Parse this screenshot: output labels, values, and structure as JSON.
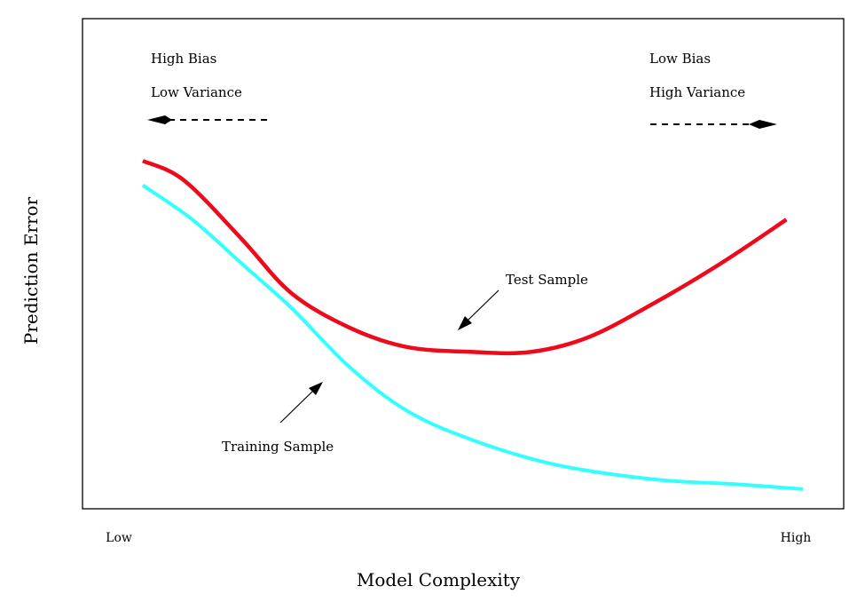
{
  "chart_data": {
    "type": "line",
    "xlabel": "Model Complexity",
    "ylabel": "Prediction Error",
    "x_tick_labels": [
      "Low",
      "High"
    ],
    "xlim": [
      0,
      1
    ],
    "ylim": [
      0,
      1
    ],
    "grid": false,
    "legend": "none",
    "series": [
      {
        "name": "Test Sample",
        "color": "#ee0a1b",
        "points": [
          [
            0.0,
            0.71
          ],
          [
            0.05,
            0.67
          ],
          [
            0.12,
            0.55
          ],
          [
            0.18,
            0.44
          ],
          [
            0.25,
            0.37
          ],
          [
            0.32,
            0.33
          ],
          [
            0.4,
            0.32
          ],
          [
            0.47,
            0.32
          ],
          [
            0.54,
            0.35
          ],
          [
            0.62,
            0.42
          ],
          [
            0.7,
            0.5
          ],
          [
            0.78,
            0.59
          ]
        ]
      },
      {
        "name": "Training Sample",
        "color": "#33ffff",
        "points": [
          [
            0.0,
            0.66
          ],
          [
            0.06,
            0.59
          ],
          [
            0.12,
            0.5
          ],
          [
            0.18,
            0.41
          ],
          [
            0.25,
            0.29
          ],
          [
            0.32,
            0.2
          ],
          [
            0.4,
            0.14
          ],
          [
            0.5,
            0.09
          ],
          [
            0.62,
            0.06
          ],
          [
            0.72,
            0.05
          ],
          [
            0.8,
            0.04
          ]
        ]
      }
    ],
    "annotations": {
      "top_left_line1": "High Bias",
      "top_left_line2": "Low Variance",
      "top_right_line1": "Low Bias",
      "top_right_line2": "High Variance",
      "test_label": "Test Sample",
      "train_label": "Training Sample"
    }
  }
}
